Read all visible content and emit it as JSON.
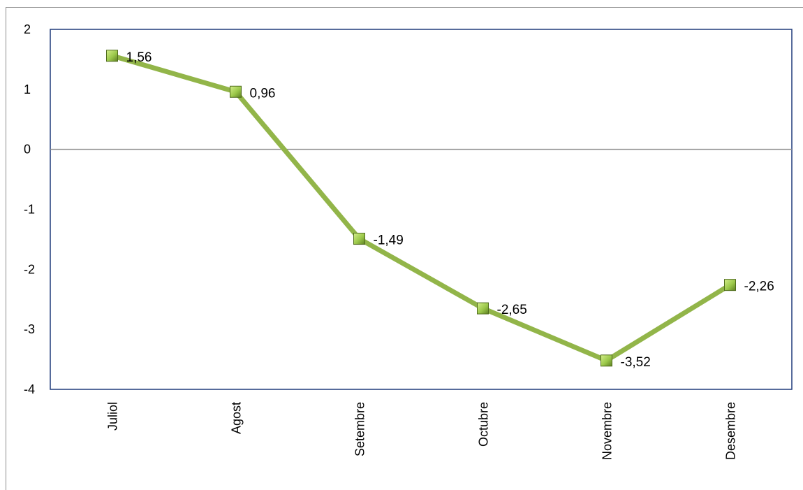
{
  "chart_data": {
    "type": "line",
    "title": "",
    "xlabel": "",
    "ylabel": "",
    "categories": [
      "Juliol",
      "Agost",
      "Setembre",
      "Octubre",
      "Novembre",
      "Desembre"
    ],
    "series": [
      {
        "values": [
          1.56,
          0.96,
          -1.49,
          -2.65,
          -3.52,
          -2.26
        ],
        "data_labels": [
          "1,56",
          "0,96",
          "-1,49",
          "-2,65",
          "-3,52",
          "-2,26"
        ],
        "line_color": "#92b549",
        "marker": "square",
        "marker_color": "#9bc84a"
      }
    ],
    "ylim": [
      -4,
      2
    ],
    "yticks": [
      2,
      1,
      0,
      -1,
      -2,
      -3,
      -4
    ],
    "ytick_labels": [
      "2",
      "1",
      "0",
      "-1",
      "-2",
      "-3",
      "-4"
    ],
    "xtick_rotation": "vertical",
    "plot_border_color": "#1f3a7a",
    "zero_line_color": "#8c8c8c",
    "grid": false,
    "legend": "none"
  }
}
